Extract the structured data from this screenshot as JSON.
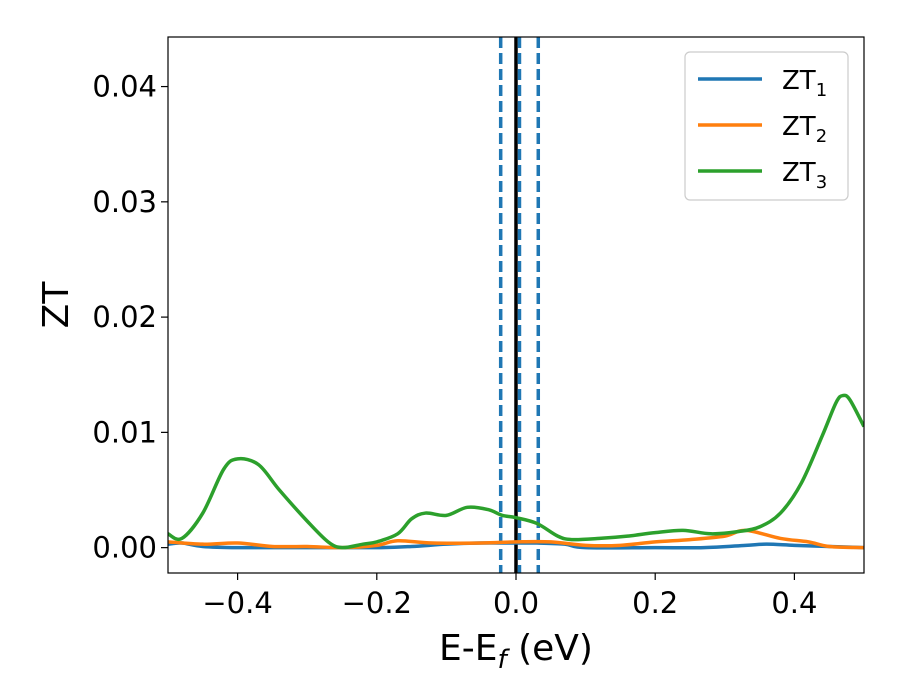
{
  "chart_data": {
    "type": "line",
    "xlabel": "E-E",
    "xlabel_subscript": "f",
    "xlabel_suffix": " (eV)",
    "ylabel": "ZT",
    "xlim": [
      -0.5,
      0.5
    ],
    "ylim": [
      -0.0022,
      0.0443
    ],
    "x_ticks": [
      -0.4,
      -0.2,
      0.0,
      0.2,
      0.4
    ],
    "x_tick_labels": [
      "−0.4",
      "−0.2",
      "0.0",
      "0.2",
      "0.4"
    ],
    "y_ticks": [
      0.0,
      0.01,
      0.02,
      0.03,
      0.04
    ],
    "y_tick_labels": [
      "0.00",
      "0.01",
      "0.02",
      "0.03",
      "0.04"
    ],
    "grid": false,
    "legend_position": "top-right",
    "vertical_lines": [
      {
        "x": 0.0,
        "color": "#000000",
        "style": "solid"
      },
      {
        "x": -0.022,
        "color": "#1f77b4",
        "style": "dashed"
      },
      {
        "x": 0.005,
        "color": "#1f77b4",
        "style": "dashed"
      },
      {
        "x": 0.032,
        "color": "#1f77b4",
        "style": "dashed"
      }
    ],
    "series": [
      {
        "name": "ZT",
        "subscript": "1",
        "color": "#1f77b4",
        "points": [
          [
            -0.5,
            0.0003
          ],
          [
            -0.48,
            0.0004
          ],
          [
            -0.45,
            0.0001
          ],
          [
            -0.4,
            0.0
          ],
          [
            -0.3,
            0.0
          ],
          [
            -0.2,
            0.0
          ],
          [
            -0.15,
            0.0001
          ],
          [
            -0.1,
            0.0003
          ],
          [
            -0.05,
            0.0004
          ],
          [
            0.0,
            0.0004
          ],
          [
            0.03,
            0.0004
          ],
          [
            0.07,
            0.0003
          ],
          [
            0.1,
            0.0
          ],
          [
            0.2,
            0.0
          ],
          [
            0.27,
            0.0
          ],
          [
            0.33,
            0.0002
          ],
          [
            0.36,
            0.0003
          ],
          [
            0.4,
            0.0002
          ],
          [
            0.45,
            0.0001
          ],
          [
            0.5,
            0.0
          ]
        ]
      },
      {
        "name": "ZT",
        "subscript": "2",
        "color": "#ff7f0e",
        "points": [
          [
            -0.5,
            0.0005
          ],
          [
            -0.45,
            0.0003
          ],
          [
            -0.4,
            0.0004
          ],
          [
            -0.35,
            0.0001
          ],
          [
            -0.3,
            0.0001
          ],
          [
            -0.25,
            0.0
          ],
          [
            -0.2,
            0.0002
          ],
          [
            -0.17,
            0.0006
          ],
          [
            -0.12,
            0.0004
          ],
          [
            -0.05,
            0.0004
          ],
          [
            0.0,
            0.0005
          ],
          [
            0.05,
            0.0005
          ],
          [
            0.1,
            0.0002
          ],
          [
            0.15,
            0.0002
          ],
          [
            0.2,
            0.0005
          ],
          [
            0.25,
            0.0007
          ],
          [
            0.3,
            0.001
          ],
          [
            0.33,
            0.0015
          ],
          [
            0.38,
            0.0008
          ],
          [
            0.42,
            0.0005
          ],
          [
            0.45,
            0.0001
          ],
          [
            0.5,
            0.0
          ]
        ]
      },
      {
        "name": "ZT",
        "subscript": "3",
        "color": "#2ca02c",
        "points": [
          [
            -0.5,
            0.0012
          ],
          [
            -0.48,
            0.0008
          ],
          [
            -0.45,
            0.003
          ],
          [
            -0.42,
            0.0068
          ],
          [
            -0.4,
            0.0077
          ],
          [
            -0.37,
            0.0072
          ],
          [
            -0.34,
            0.005
          ],
          [
            -0.3,
            0.0023
          ],
          [
            -0.27,
            0.0005
          ],
          [
            -0.25,
            0.0
          ],
          [
            -0.22,
            0.0003
          ],
          [
            -0.2,
            0.0005
          ],
          [
            -0.17,
            0.0012
          ],
          [
            -0.15,
            0.0025
          ],
          [
            -0.13,
            0.003
          ],
          [
            -0.1,
            0.0028
          ],
          [
            -0.07,
            0.0035
          ],
          [
            -0.04,
            0.0033
          ],
          [
            -0.02,
            0.0028
          ],
          [
            0.0,
            0.0026
          ],
          [
            0.03,
            0.0021
          ],
          [
            0.06,
            0.001
          ],
          [
            0.08,
            0.0007
          ],
          [
            0.12,
            0.0008
          ],
          [
            0.16,
            0.001
          ],
          [
            0.2,
            0.0013
          ],
          [
            0.24,
            0.0015
          ],
          [
            0.28,
            0.0012
          ],
          [
            0.32,
            0.0014
          ],
          [
            0.35,
            0.0018
          ],
          [
            0.38,
            0.003
          ],
          [
            0.41,
            0.0056
          ],
          [
            0.44,
            0.0097
          ],
          [
            0.46,
            0.0126
          ],
          [
            0.47,
            0.0132
          ],
          [
            0.48,
            0.0128
          ],
          [
            0.5,
            0.0105
          ]
        ]
      }
    ]
  }
}
